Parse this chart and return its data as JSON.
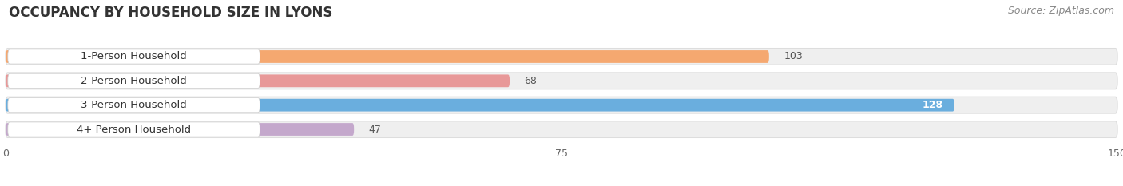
{
  "title": "OCCUPANCY BY HOUSEHOLD SIZE IN LYONS",
  "source": "Source: ZipAtlas.com",
  "categories": [
    "1-Person Household",
    "2-Person Household",
    "3-Person Household",
    "4+ Person Household"
  ],
  "values": [
    103,
    68,
    128,
    47
  ],
  "bar_colors": [
    "#F5A870",
    "#E89898",
    "#6AAEDE",
    "#C4A8CC"
  ],
  "track_color": "#EFEFEF",
  "track_border_color": "#DDDDDD",
  "xlim": [
    0,
    150
  ],
  "xticks": [
    0,
    75,
    150
  ],
  "background_color": "#FFFFFF",
  "title_fontsize": 12,
  "source_fontsize": 9,
  "bar_label_fontsize": 9.5,
  "value_fontsize": 9,
  "figsize": [
    14.06,
    2.33
  ],
  "dpi": 100,
  "value_inside_color": "#FFFFFF",
  "value_outside_color": "#555555",
  "inside_threshold": 110
}
